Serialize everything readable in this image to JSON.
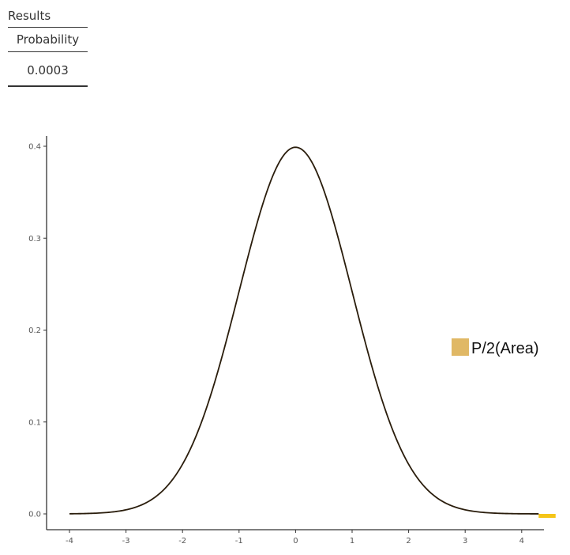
{
  "results": {
    "title": "Results",
    "column_header": "Probability",
    "value": "0.0003"
  },
  "chart_data": {
    "type": "area",
    "title": "",
    "xlabel": "",
    "ylabel": "",
    "xlim": [
      -4,
      4.6
    ],
    "ylim": [
      0,
      0.4
    ],
    "x_ticks": [
      -4,
      -3,
      -2,
      -1,
      0,
      1,
      2,
      3,
      4
    ],
    "y_ticks": [
      0.0,
      0.1,
      0.2,
      0.3,
      0.4
    ],
    "x_tick_labels": [
      "-4",
      "-3",
      "-2",
      "-1",
      "0",
      "1",
      "2",
      "3",
      "4"
    ],
    "y_tick_labels": [
      "0.0",
      "0.1",
      "0.2",
      "0.3",
      "0.4"
    ],
    "curve": {
      "distribution": "standard normal density",
      "x": [
        -4,
        -3.5,
        -3,
        -2.5,
        -2,
        -1.5,
        -1,
        -0.5,
        0,
        0.5,
        1,
        1.5,
        2,
        2.5,
        3,
        3.5,
        4,
        4.3
      ],
      "y": [
        0.0001,
        0.0009,
        0.0044,
        0.0175,
        0.054,
        0.1295,
        0.242,
        0.3521,
        0.3989,
        0.3521,
        0.242,
        0.1295,
        0.054,
        0.0175,
        0.0044,
        0.0009,
        0.0001,
        0.0
      ]
    },
    "shaded_region": {
      "label": "P/2(Area)",
      "x_from": 4.3,
      "x_to": 4.6
    },
    "legend": {
      "entries": [
        "P/2(Area)"
      ],
      "placement": "right"
    },
    "grid": false,
    "colors": {
      "curve": "#2a1d0c",
      "legend_swatch": "#e0b865",
      "shaded_area": "#f5c518",
      "axis": "#333333"
    }
  }
}
